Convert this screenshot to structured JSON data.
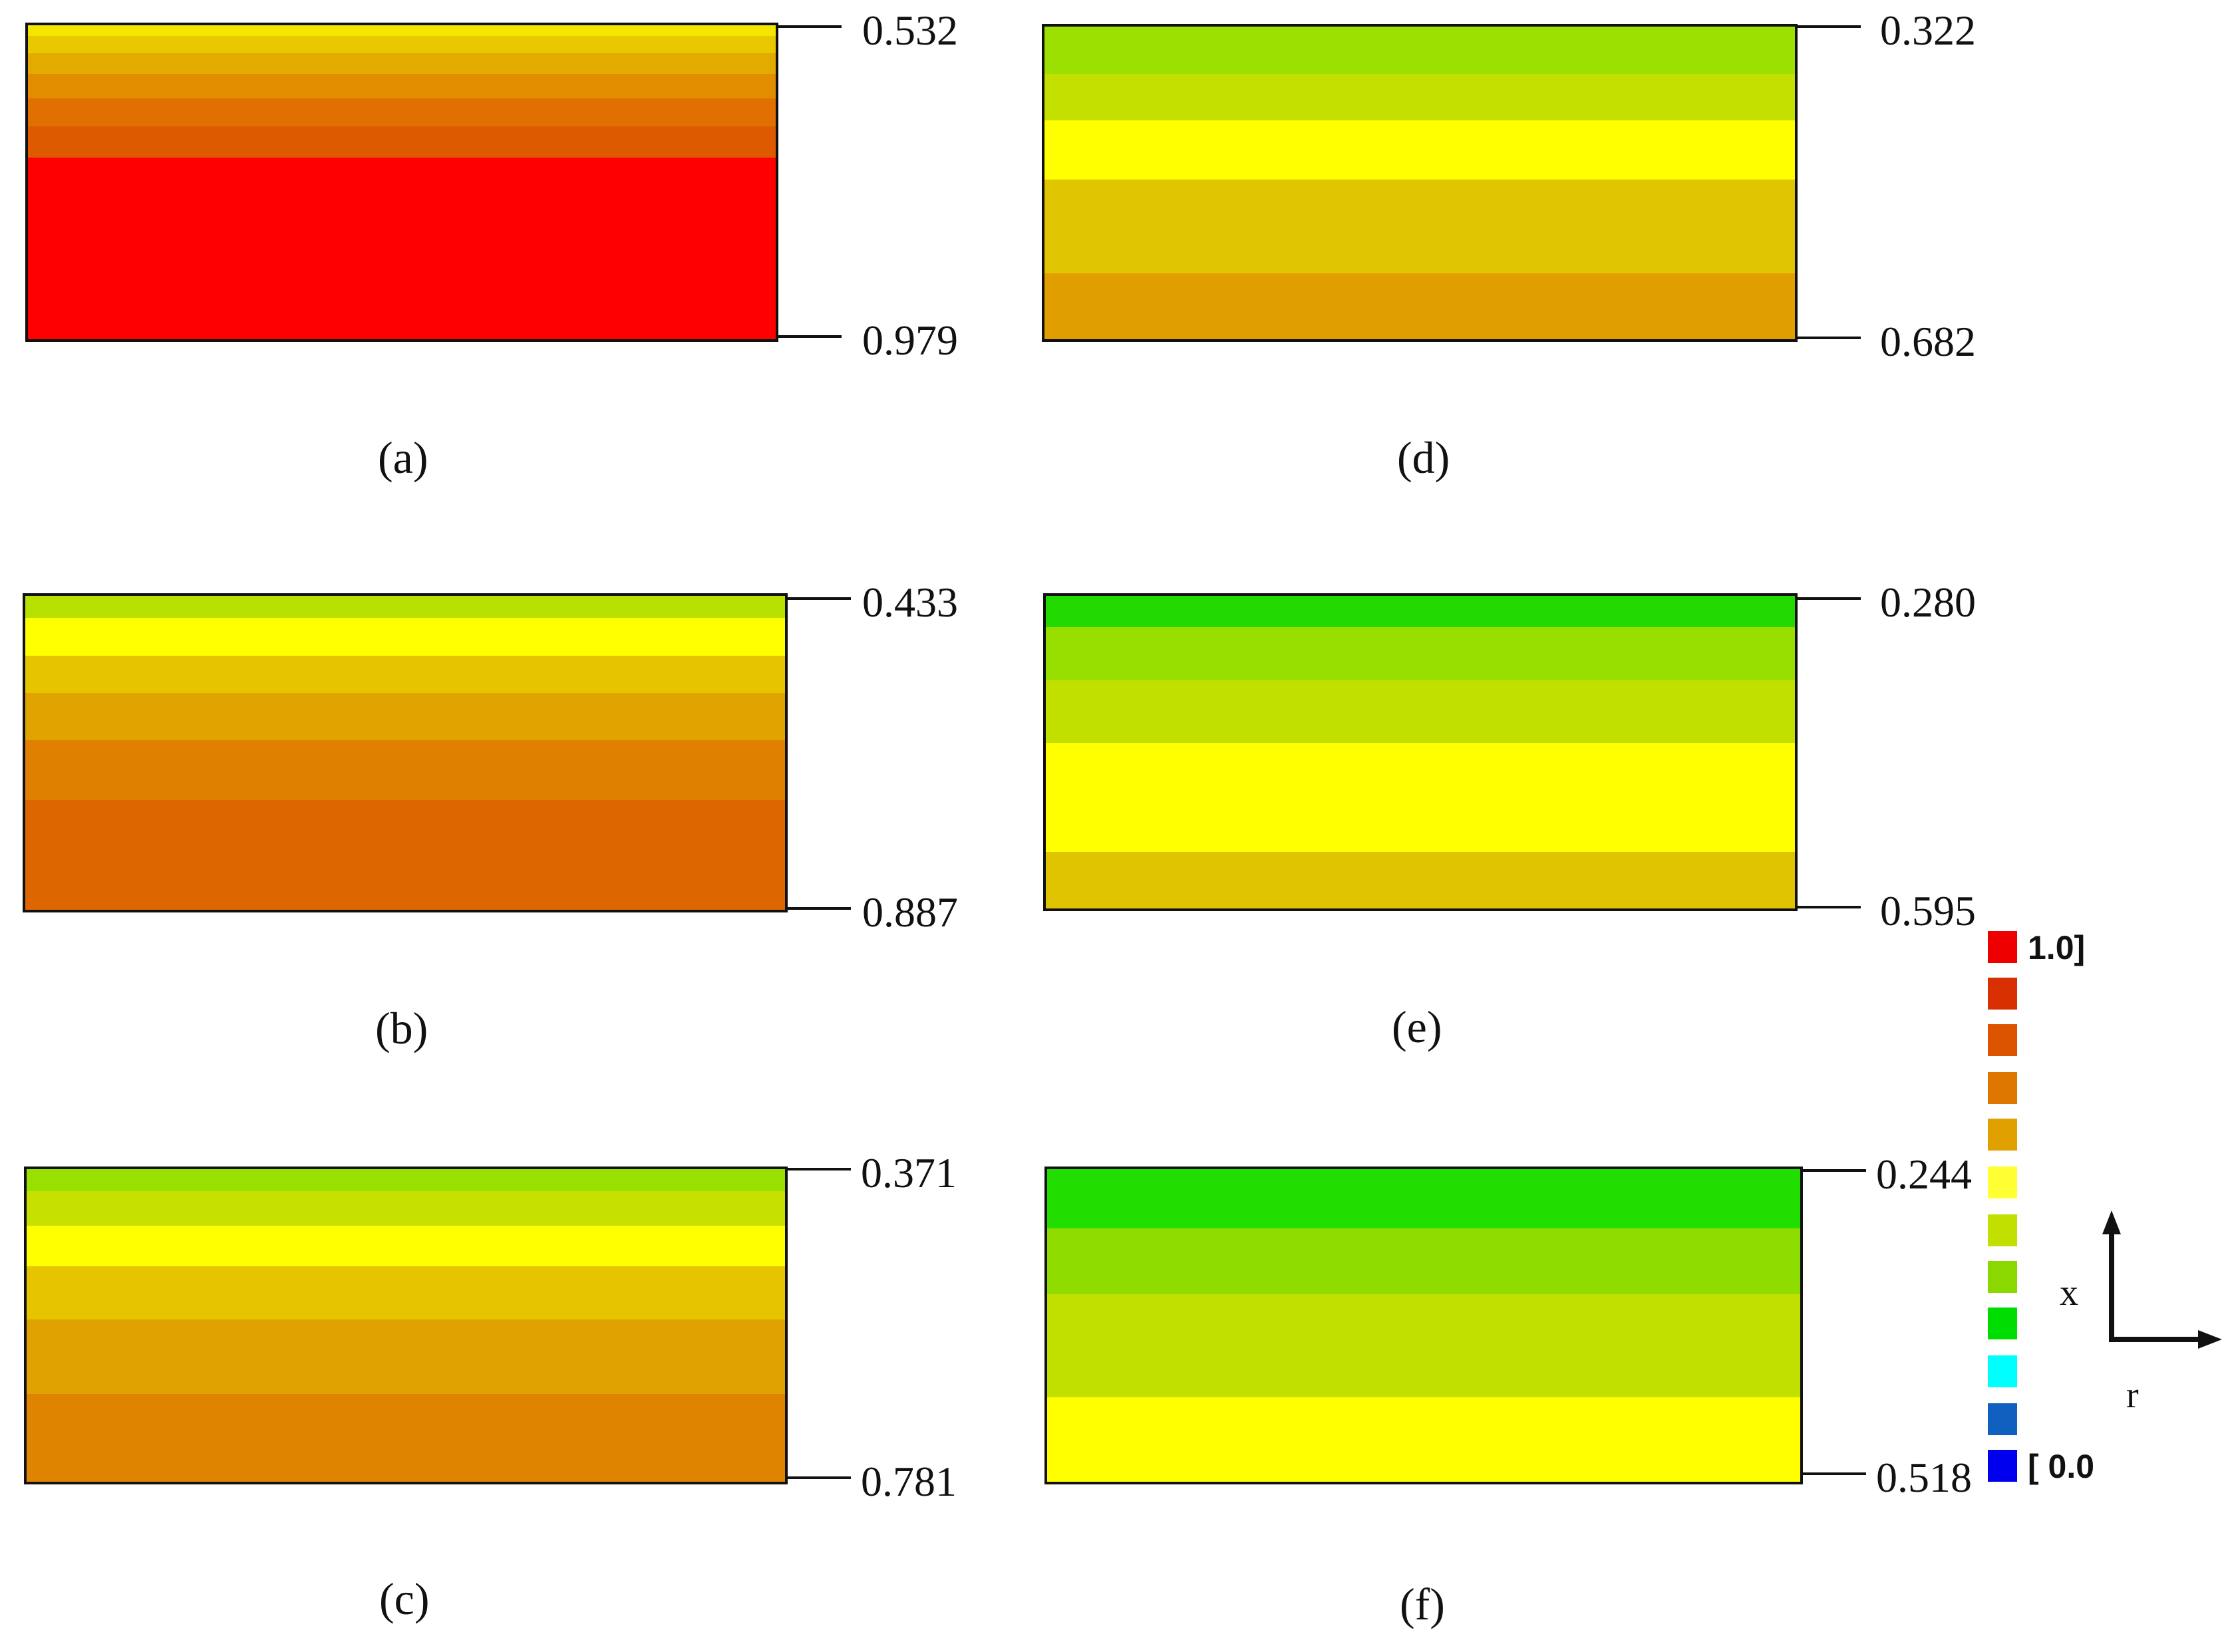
{
  "panels": [
    {
      "caption": "(a)",
      "top_value": "0.532",
      "bottom_value": "0.979",
      "bands": [
        {
          "color": "#f4e600",
          "weight": 3
        },
        {
          "color": "#eac800",
          "weight": 5
        },
        {
          "color": "#e3ab00",
          "weight": 6
        },
        {
          "color": "#e28c00",
          "weight": 7
        },
        {
          "color": "#e07000",
          "weight": 8
        },
        {
          "color": "#de5a00",
          "weight": 9
        },
        {
          "color": "#ff0000",
          "weight": 52
        }
      ]
    },
    {
      "caption": "(b)",
      "top_value": "0.433",
      "bottom_value": "0.887",
      "bands": [
        {
          "color": "#b8e000",
          "weight": 7
        },
        {
          "color": "#ffff00",
          "weight": 12
        },
        {
          "color": "#e6c400",
          "weight": 12
        },
        {
          "color": "#e0a300",
          "weight": 15
        },
        {
          "color": "#e08000",
          "weight": 19
        },
        {
          "color": "#de6600",
          "weight": 35
        }
      ]
    },
    {
      "caption": "(c)",
      "top_value": "0.371",
      "bottom_value": "0.781",
      "bands": [
        {
          "color": "#98e000",
          "weight": 7
        },
        {
          "color": "#c6e000",
          "weight": 11
        },
        {
          "color": "#ffff00",
          "weight": 13
        },
        {
          "color": "#e6c400",
          "weight": 17
        },
        {
          "color": "#e0a200",
          "weight": 24
        },
        {
          "color": "#df8400",
          "weight": 28
        }
      ]
    },
    {
      "caption": "(d)",
      "top_value": "0.322",
      "bottom_value": "0.682",
      "bands": [
        {
          "color": "#9be000",
          "weight": 15
        },
        {
          "color": "#c4e000",
          "weight": 15
        },
        {
          "color": "#ffff00",
          "weight": 19
        },
        {
          "color": "#e0c600",
          "weight": 30
        },
        {
          "color": "#e09e00",
          "weight": 21
        }
      ]
    },
    {
      "caption": "(e)",
      "top_value": "0.280",
      "bottom_value": "0.595",
      "bands": [
        {
          "color": "#22d900",
          "weight": 10
        },
        {
          "color": "#98df00",
          "weight": 17
        },
        {
          "color": "#c2e000",
          "weight": 20
        },
        {
          "color": "#ffff00",
          "weight": 35
        },
        {
          "color": "#e0c400",
          "weight": 18
        }
      ]
    },
    {
      "caption": "(f)",
      "top_value": "0.244",
      "bottom_value": "0.518",
      "bands": [
        {
          "color": "#22dd00",
          "weight": 19
        },
        {
          "color": "#8fdc00",
          "weight": 21
        },
        {
          "color": "#c1e000",
          "weight": 33
        },
        {
          "color": "#ffff00",
          "weight": 27
        }
      ]
    }
  ],
  "legend": {
    "max_label": "1.0]",
    "min_label": "[ 0.0",
    "colors": [
      "#ee0000",
      "#d83000",
      "#dd5400",
      "#dd7700",
      "#e0a000",
      "#ffff33",
      "#c2e000",
      "#8ad800",
      "#00dd00",
      "#00ffff",
      "#1060c0",
      "#0000ee"
    ]
  },
  "axes": {
    "vertical_label": "x",
    "horizontal_label": "r"
  }
}
